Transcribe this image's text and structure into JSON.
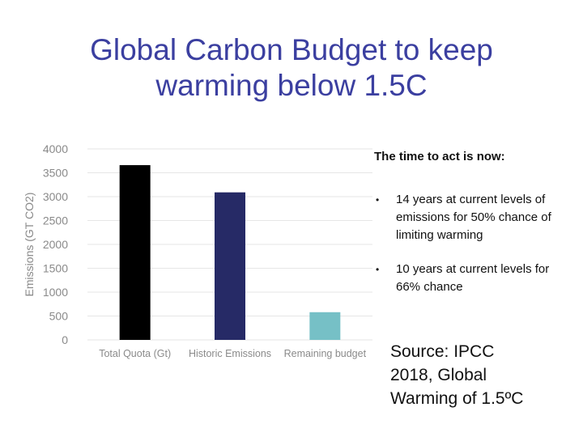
{
  "title": {
    "line1": "Global Carbon Budget to keep",
    "line2": "warming below 1.5C"
  },
  "panel": {
    "heading": "The time to act is now:",
    "bullets": [
      "14 years at current levels of emissions for 50% chance of limiting warming",
      "10 years at current levels for 66% chance"
    ]
  },
  "source": {
    "line1": "Source: IPCC",
    "line2": "2018, Global",
    "line3": "Warming of 1.5ºC"
  },
  "colors": {
    "title": "#3b3fa0",
    "bar_total": "#000000",
    "bar_historic": "#262a66",
    "bar_remaining": "#76c0c6",
    "axis_text": "#8a8a8a",
    "grid": "#e6e6e6"
  },
  "chart_data": {
    "type": "bar",
    "categories": [
      "Total Quota (Gt)",
      "Historic Emissions",
      "Remaining budget"
    ],
    "values": [
      3660,
      3090,
      580
    ],
    "ylabel": "Emissions (GT CO2)",
    "ylim": [
      0,
      4000
    ],
    "yticks": [
      0,
      500,
      1000,
      1500,
      2000,
      2500,
      3000,
      3500,
      4000
    ],
    "grid": true,
    "legend": "none"
  }
}
